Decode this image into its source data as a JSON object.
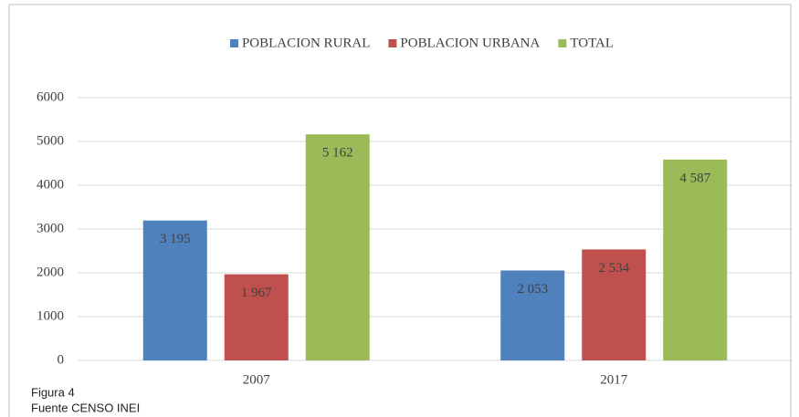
{
  "chart_data": {
    "type": "bar",
    "categories": [
      "2007",
      "2017"
    ],
    "series": [
      {
        "name": "POBLACION RURAL",
        "color": "#4f81bd",
        "values": [
          3195,
          2053
        ],
        "value_labels": [
          "3 195",
          "2 053"
        ]
      },
      {
        "name": "POBLACION URBANA",
        "color": "#c0504d",
        "values": [
          1967,
          2534
        ],
        "value_labels": [
          "1 967",
          "2 534"
        ]
      },
      {
        "name": "TOTAL",
        "color": "#9bbb59",
        "values": [
          5162,
          4587
        ],
        "value_labels": [
          "5 162",
          "4 587"
        ]
      }
    ],
    "ylim": [
      0,
      6000
    ],
    "yticks": [
      0,
      1000,
      2000,
      3000,
      4000,
      5000,
      6000
    ],
    "grid": true,
    "legend": "top",
    "annotations": [
      "Figura 4",
      "Fuente CENSO INEI"
    ]
  }
}
